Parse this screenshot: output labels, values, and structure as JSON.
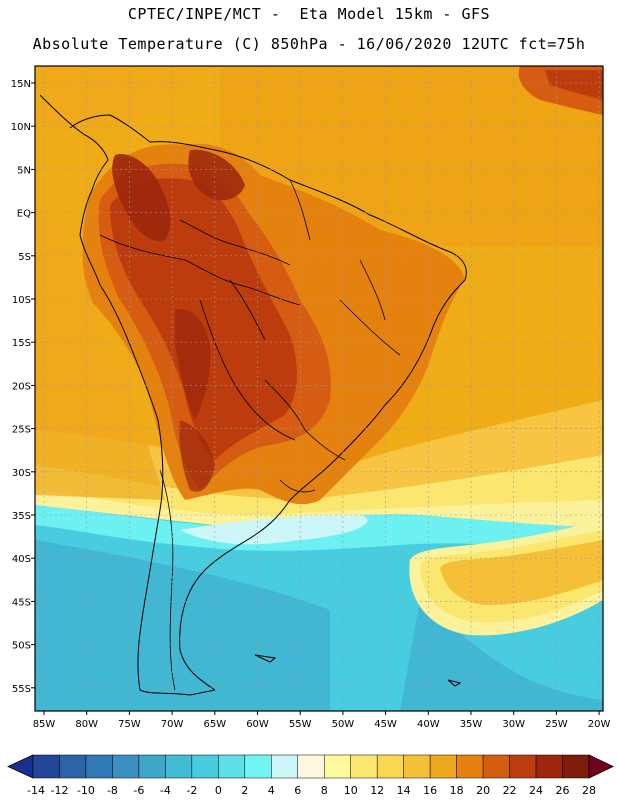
{
  "title": {
    "line1": "CPTEC/INPE/MCT -  Eta Model 15km - GFS",
    "line2": "Absolute Temperature (C) 850hPa - 16/06/2020 12UTC fct=75h"
  },
  "map": {
    "lat_labels": [
      "15N",
      "10N",
      "5N",
      "EQ",
      "5S",
      "10S",
      "15S",
      "20S",
      "25S",
      "30S",
      "35S",
      "40S",
      "45S",
      "50S",
      "55S"
    ],
    "lon_labels": [
      "85W",
      "80W",
      "75W",
      "70W",
      "65W",
      "60W",
      "55W",
      "50W",
      "45W",
      "40W",
      "35W",
      "30W",
      "25W",
      "20W"
    ],
    "colors": {
      "warm_ocean": "#f0ac16",
      "hot_interior": "#b24a1a",
      "cold_south": "#3fd8e6"
    }
  },
  "colorbar": {
    "ticks": [
      "-14",
      "-12",
      "-10",
      "-8",
      "-6",
      "-4",
      "-2",
      "0",
      "2",
      "4",
      "6",
      "8",
      "10",
      "12",
      "14",
      "16",
      "18",
      "20",
      "22",
      "24",
      "26",
      "28"
    ],
    "colors": [
      "#22479a",
      "#2d64a8",
      "#3178b7",
      "#3a8fc3",
      "#3ea6c9",
      "#42bcd4",
      "#48cce0",
      "#5de0e8",
      "#70f4f4",
      "#ccf6f8",
      "#fff8e0",
      "#fefa9c",
      "#fbe770",
      "#fad652",
      "#f5c038",
      "#eea81c",
      "#e5820f",
      "#d55c10",
      "#bd3c0e",
      "#9c260c",
      "#7e1c0c"
    ],
    "under_color": "#1c2f8c",
    "over_color": "#70031e"
  }
}
